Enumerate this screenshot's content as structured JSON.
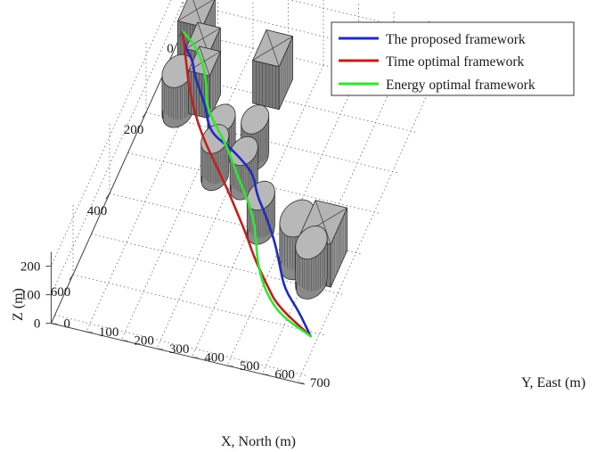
{
  "chart_data": {
    "type": "line",
    "title": "",
    "xlabel": "X, North (m)",
    "ylabel": "Y, East (m)",
    "zlabel": "Z (m)",
    "x_ticks": [
      0,
      200,
      400,
      600
    ],
    "y_ticks": [
      0,
      100,
      200,
      300,
      400,
      500,
      600,
      700
    ],
    "z_ticks": [
      0,
      100,
      200
    ],
    "xlim": [
      0,
      720
    ],
    "ylim": [
      0,
      720
    ],
    "zlim": [
      0,
      250
    ],
    "grid": true,
    "legend_position": "top-right",
    "series": [
      {
        "name": "The proposed framework",
        "color": "#1f2bbf",
        "points": [
          [
            0,
            0
          ],
          [
            30,
            20
          ],
          [
            60,
            60
          ],
          [
            90,
            80
          ],
          [
            120,
            110
          ],
          [
            160,
            150
          ],
          [
            190,
            170
          ],
          [
            215,
            200
          ],
          [
            235,
            260
          ],
          [
            265,
            320
          ],
          [
            285,
            350
          ],
          [
            325,
            380
          ],
          [
            360,
            420
          ],
          [
            390,
            450
          ],
          [
            420,
            480
          ],
          [
            470,
            520
          ],
          [
            520,
            560
          ],
          [
            560,
            620
          ],
          [
            610,
            680
          ]
        ]
      },
      {
        "name": "Time optimal framework",
        "color": "#c41e1e",
        "points": [
          [
            0,
            0
          ],
          [
            60,
            40
          ],
          [
            120,
            80
          ],
          [
            180,
            130
          ],
          [
            230,
            180
          ],
          [
            280,
            240
          ],
          [
            330,
            300
          ],
          [
            375,
            350
          ],
          [
            420,
            400
          ],
          [
            470,
            450
          ],
          [
            520,
            510
          ],
          [
            560,
            560
          ],
          [
            610,
            680
          ]
        ]
      },
      {
        "name": "Energy optimal framework",
        "color": "#2ee82e",
        "points": [
          [
            0,
            0
          ],
          [
            20,
            40
          ],
          [
            60,
            90
          ],
          [
            110,
            125
          ],
          [
            150,
            145
          ],
          [
            185,
            185
          ],
          [
            220,
            230
          ],
          [
            250,
            265
          ],
          [
            295,
            310
          ],
          [
            330,
            350
          ],
          [
            370,
            390
          ],
          [
            410,
            420
          ],
          [
            460,
            450
          ],
          [
            500,
            480
          ],
          [
            540,
            520
          ],
          [
            580,
            580
          ],
          [
            610,
            680
          ]
        ]
      }
    ],
    "obstacles": [
      {
        "shape": "box",
        "x": 40,
        "y": 60,
        "size": 70,
        "h": 150
      },
      {
        "shape": "box",
        "x": 100,
        "y": 110,
        "size": 65,
        "h": 150
      },
      {
        "shape": "box",
        "x": 150,
        "y": 140,
        "size": 60,
        "h": 150
      },
      {
        "shape": "box",
        "x": 85,
        "y": 300,
        "size": 75,
        "h": 150
      },
      {
        "shape": "box",
        "x": 445,
        "y": 630,
        "size": 90,
        "h": 150
      },
      {
        "shape": "cyl",
        "x": 180,
        "y": 80,
        "r": 40,
        "h": 140
      },
      {
        "shape": "cyl",
        "x": 250,
        "y": 240,
        "r": 35,
        "h": 120
      },
      {
        "shape": "cyl",
        "x": 240,
        "y": 330,
        "r": 35,
        "h": 130
      },
      {
        "shape": "cyl",
        "x": 305,
        "y": 250,
        "r": 35,
        "h": 130
      },
      {
        "shape": "cyl",
        "x": 310,
        "y": 335,
        "r": 35,
        "h": 120
      },
      {
        "shape": "cyl",
        "x": 400,
        "y": 430,
        "r": 35,
        "h": 120
      },
      {
        "shape": "cyl",
        "x": 450,
        "y": 560,
        "r": 45,
        "h": 150
      },
      {
        "shape": "cyl",
        "x": 490,
        "y": 620,
        "r": 40,
        "h": 140
      }
    ]
  }
}
